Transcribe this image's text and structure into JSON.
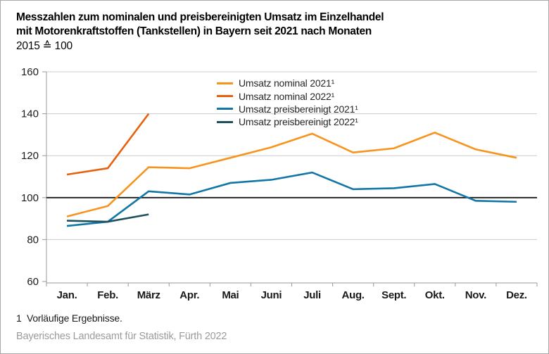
{
  "header": {
    "title_line1": "Messzahlen zum nominalen und preisbereinigten Umsatz im Einzelhandel",
    "title_line2": "mit Motorenkraftstoffen (Tankstellen) in Bayern seit 2021 nach Monaten",
    "subtitle": "2015 ≙ 100"
  },
  "footnote": "1  Vorläufige Ergebnisse.",
  "source": "Bayerisches Landesamt für Statistik, Fürth 2022",
  "colors": {
    "nominal_2021": "#F7941D",
    "nominal_2022": "#E7600D",
    "preisbereinigt_2021": "#1276A6",
    "preisbereinigt_2022": "#1E515E",
    "baseline": "#1a1a1a",
    "gridline": "#cccccc",
    "axis": "#999999",
    "axis_label": "#1a1a1a",
    "source_text": "#9b9b9b"
  },
  "chart_data": {
    "type": "line",
    "title": "Messzahlen zum nominalen und preisbereinigten Umsatz im Einzelhandel mit Motorenkraftstoffen (Tankstellen) in Bayern seit 2021 nach Monaten",
    "subtitle": "2015 ≙ 100",
    "categories": [
      "Jan.",
      "Feb.",
      "März",
      "Apr.",
      "Mai",
      "Juni",
      "Juli",
      "Aug.",
      "Sept.",
      "Okt.",
      "Nov.",
      "Dez."
    ],
    "series": [
      {
        "name": "Umsatz nominal 2021¹",
        "color": "#F7941D",
        "values": [
          91,
          96,
          114.5,
          114,
          119,
          124,
          130.5,
          121.5,
          123.5,
          131,
          123,
          119
        ]
      },
      {
        "name": "Umsatz nominal 2022¹",
        "color": "#E7600D",
        "values": [
          111,
          114,
          140
        ]
      },
      {
        "name": "Umsatz preisbereinigt 2021¹",
        "color": "#1276A6",
        "values": [
          86.5,
          88.5,
          103,
          101.5,
          107,
          108.5,
          112,
          104,
          104.5,
          106.5,
          98.5,
          98
        ]
      },
      {
        "name": "Umsatz preisbereinigt 2022¹",
        "color": "#1E515E",
        "values": [
          89,
          88.5,
          92
        ]
      }
    ],
    "ylim": [
      60,
      160
    ],
    "yticks": [
      60,
      80,
      100,
      120,
      140,
      160
    ],
    "baseline": 100,
    "grid": true,
    "legend_position": "top-center-inside"
  }
}
